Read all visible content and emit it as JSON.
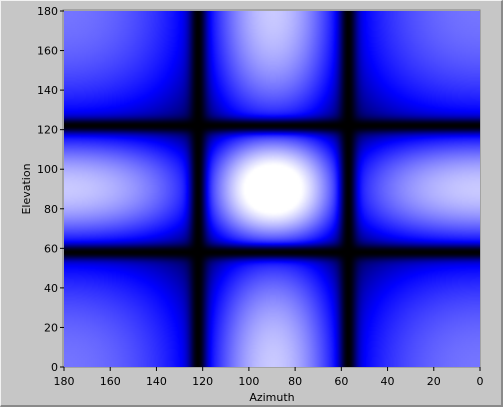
{
  "chart_data": {
    "type": "heatmap",
    "xlabel": "Azimuth",
    "ylabel": "Elevation",
    "xlim": [
      180,
      0
    ],
    "ylim": [
      0,
      180
    ],
    "x_reversed": true,
    "x_ticks": [
      180,
      160,
      140,
      120,
      100,
      80,
      60,
      40,
      20,
      0
    ],
    "y_ticks": [
      0,
      20,
      40,
      60,
      80,
      100,
      120,
      140,
      160,
      180
    ],
    "null_lines_azimuth": [
      122,
      57
    ],
    "null_lines_elevation": [
      58,
      122
    ],
    "peak": {
      "azimuth": 90,
      "elevation": 90
    },
    "colormap": [
      "#000000",
      "#0000ff",
      "#ffffff"
    ],
    "grid": false
  }
}
